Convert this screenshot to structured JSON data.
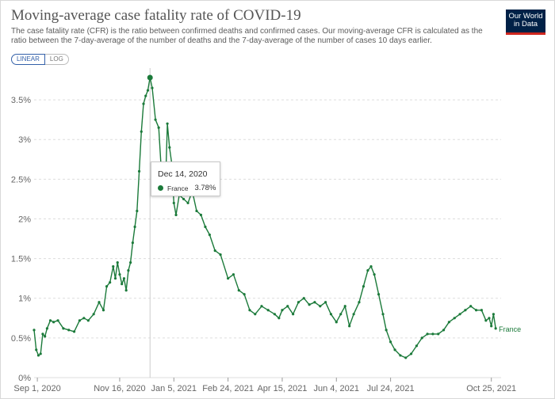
{
  "header": {
    "title": "Moving-average case fatality rate of COVID-19",
    "subtitle": "The case fatality rate (CFR) is the ratio between confirmed deaths and confirmed cases. Our moving-average CFR is calculated as the ratio between the 7-day-average of the number of deaths and the 7-day-average of the number of cases 10 days earlier.",
    "logo_line1": "Our World",
    "logo_line2": "in Data"
  },
  "scale_toggle": {
    "linear_label": "LINEAR",
    "log_label": "LOG",
    "selected": "LINEAR"
  },
  "tooltip": {
    "date": "Dec 14, 2020",
    "entity": "France",
    "value": "3.78%"
  },
  "colors": {
    "series": "#1b7a3a",
    "grid": "#dddddd",
    "axis_text": "#666666",
    "title": "#555555"
  },
  "chart_data": {
    "type": "line",
    "title": "Moving-average case fatality rate of COVID-19",
    "xlabel": "",
    "ylabel": "",
    "y_unit": "%",
    "x_range": [
      "2020-08-29",
      "2021-11-03"
    ],
    "ylim": [
      0,
      3.9
    ],
    "yticks": [
      0,
      0.5,
      1,
      1.5,
      2,
      2.5,
      3,
      3.5
    ],
    "ytick_labels": [
      "0%",
      "0.5%",
      "1%",
      "1.5%",
      "2%",
      "2.5%",
      "3%",
      "3.5%"
    ],
    "xticks": [
      "2020-09-01",
      "2020-11-16",
      "2021-01-05",
      "2021-02-24",
      "2021-04-15",
      "2021-06-04",
      "2021-07-24",
      "2021-10-25"
    ],
    "xtick_labels": [
      "Sep 1, 2020",
      "Nov 16, 2020",
      "Jan 5, 2021",
      "Feb 24, 2021",
      "Apr 15, 2021",
      "Jun 4, 2021",
      "Jul 24, 2021",
      "Oct 25, 2021"
    ],
    "grid": true,
    "highlight": {
      "date": "2020-12-14",
      "value": 3.78
    },
    "series": [
      {
        "name": "France",
        "dates": [
          "2020-08-29",
          "2020-08-31",
          "2020-09-02",
          "2020-09-04",
          "2020-09-06",
          "2020-09-08",
          "2020-09-10",
          "2020-09-13",
          "2020-09-16",
          "2020-09-20",
          "2020-09-25",
          "2020-09-30",
          "2020-10-05",
          "2020-10-10",
          "2020-10-14",
          "2020-10-18",
          "2020-10-23",
          "2020-10-28",
          "2020-11-01",
          "2020-11-04",
          "2020-11-07",
          "2020-11-10",
          "2020-11-12",
          "2020-11-14",
          "2020-11-16",
          "2020-11-18",
          "2020-11-20",
          "2020-11-22",
          "2020-11-24",
          "2020-11-26",
          "2020-11-28",
          "2020-11-30",
          "2020-12-02",
          "2020-12-04",
          "2020-12-06",
          "2020-12-08",
          "2020-12-10",
          "2020-12-12",
          "2020-12-14",
          "2020-12-16",
          "2020-12-19",
          "2020-12-22",
          "2020-12-24",
          "2020-12-26",
          "2020-12-28",
          "2020-12-30",
          "2021-01-01",
          "2021-01-03",
          "2021-01-05",
          "2021-01-07",
          "2021-01-10",
          "2021-01-14",
          "2021-01-18",
          "2021-01-22",
          "2021-01-26",
          "2021-01-30",
          "2021-02-03",
          "2021-02-07",
          "2021-02-12",
          "2021-02-17",
          "2021-02-24",
          "2021-03-01",
          "2021-03-06",
          "2021-03-11",
          "2021-03-16",
          "2021-03-21",
          "2021-03-27",
          "2021-04-02",
          "2021-04-08",
          "2021-04-12",
          "2021-04-15",
          "2021-04-20",
          "2021-04-25",
          "2021-04-30",
          "2021-05-05",
          "2021-05-10",
          "2021-05-15",
          "2021-05-20",
          "2021-05-25",
          "2021-05-30",
          "2021-06-04",
          "2021-06-08",
          "2021-06-12",
          "2021-06-16",
          "2021-06-20",
          "2021-06-25",
          "2021-06-29",
          "2021-07-03",
          "2021-07-06",
          "2021-07-09",
          "2021-07-13",
          "2021-07-17",
          "2021-07-20",
          "2021-07-24",
          "2021-07-28",
          "2021-08-02",
          "2021-08-07",
          "2021-08-12",
          "2021-08-17",
          "2021-08-22",
          "2021-08-27",
          "2021-09-01",
          "2021-09-06",
          "2021-09-11",
          "2021-09-16",
          "2021-09-21",
          "2021-09-26",
          "2021-10-01",
          "2021-10-06",
          "2021-10-11",
          "2021-10-16",
          "2021-10-20",
          "2021-10-23",
          "2021-10-25",
          "2021-10-27",
          "2021-10-29"
        ],
        "values": [
          0.6,
          0.35,
          0.28,
          0.3,
          0.55,
          0.52,
          0.62,
          0.72,
          0.7,
          0.72,
          0.62,
          0.6,
          0.58,
          0.72,
          0.75,
          0.72,
          0.8,
          0.95,
          0.85,
          1.15,
          1.2,
          1.4,
          1.25,
          1.45,
          1.3,
          1.18,
          1.25,
          1.1,
          1.35,
          1.45,
          1.7,
          1.9,
          2.1,
          2.6,
          3.1,
          3.45,
          3.55,
          3.62,
          3.78,
          3.65,
          3.25,
          3.15,
          2.7,
          2.45,
          2.3,
          3.2,
          2.9,
          2.7,
          2.2,
          2.05,
          2.3,
          2.25,
          2.2,
          2.35,
          2.1,
          2.05,
          1.9,
          1.8,
          1.6,
          1.55,
          1.25,
          1.3,
          1.1,
          1.05,
          0.85,
          0.8,
          0.9,
          0.85,
          0.8,
          0.75,
          0.85,
          0.9,
          0.8,
          0.95,
          1.0,
          0.92,
          0.95,
          0.9,
          0.95,
          0.8,
          0.7,
          0.8,
          0.9,
          0.65,
          0.8,
          0.95,
          1.15,
          1.35,
          1.4,
          1.3,
          1.05,
          0.8,
          0.6,
          0.45,
          0.35,
          0.28,
          0.25,
          0.3,
          0.4,
          0.5,
          0.55,
          0.55,
          0.55,
          0.6,
          0.7,
          0.75,
          0.8,
          0.85,
          0.9,
          0.85,
          0.85,
          0.72,
          0.75,
          0.65,
          0.8,
          0.62
        ]
      }
    ]
  }
}
